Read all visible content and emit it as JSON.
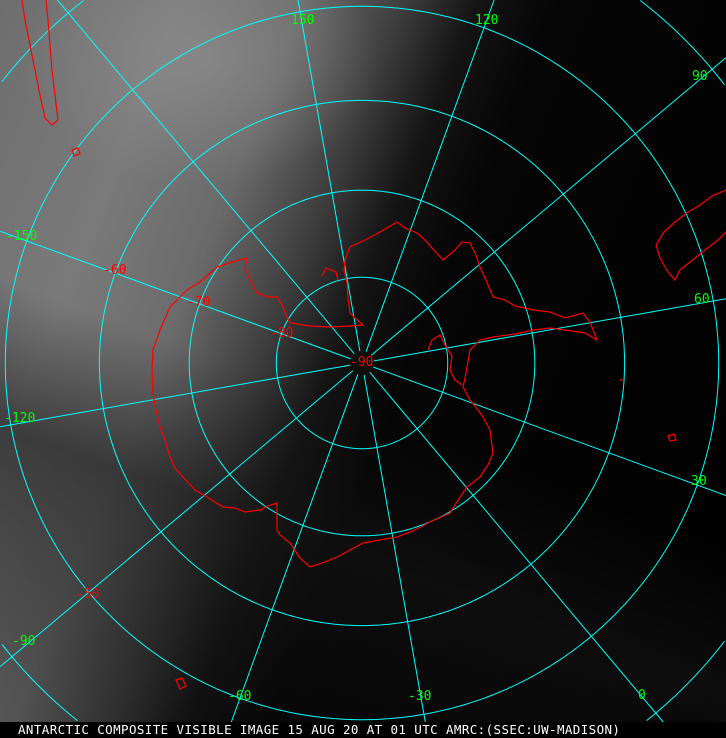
{
  "caption": "ANTARCTIC COMPOSITE VISIBLE IMAGE 15 AUG 20 AT 01 UTC AMRC:(SSEC:UW-MADISON)",
  "colors": {
    "grid": "#00ffff",
    "coastline": "#ff0000",
    "longitude_labels": "#00ff00",
    "latitude_labels": "#ff0000",
    "caption": "#ffffff"
  },
  "projection": "polar stereographic (south pole)",
  "latitude_labels": [
    "-50",
    "-60",
    "-70",
    "-80",
    "-90"
  ],
  "longitude_labels": [
    "150",
    "120",
    "90",
    "60",
    "30",
    "0",
    "-30",
    "-60",
    "-90",
    "-120",
    "-150"
  ]
}
